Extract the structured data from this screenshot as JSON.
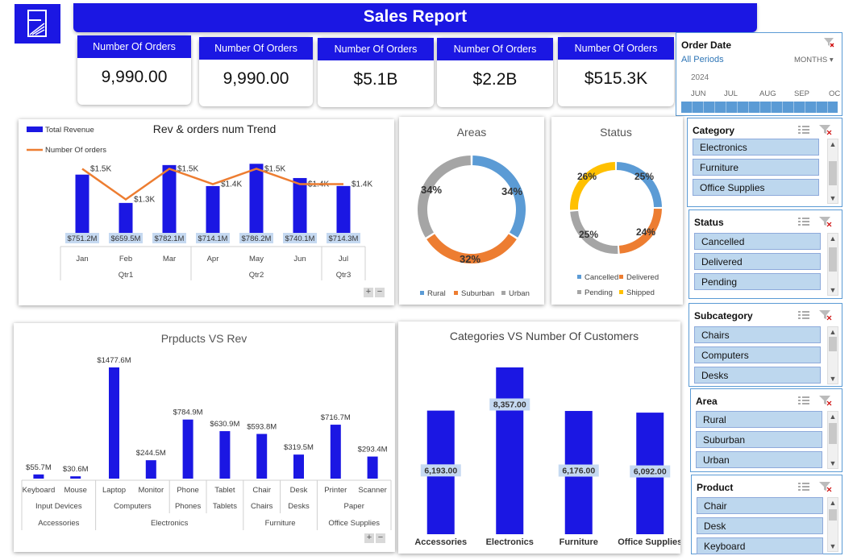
{
  "header": {
    "title": "Sales Report"
  },
  "kpis": [
    {
      "label": "Number Of Orders",
      "value": "9,990.00"
    },
    {
      "label": "Number Of Orders",
      "value": "9,990.00"
    },
    {
      "label": "Number Of Orders",
      "value": "$5.1B"
    },
    {
      "label": "Number Of Orders",
      "value": "$2.2B"
    },
    {
      "label": "Number Of Orders",
      "value": "$515.3K"
    }
  ],
  "timeline": {
    "title": "Order Date",
    "period_label": "All Periods",
    "level_label": "MONTHS",
    "year": "2024",
    "months": [
      "JUN",
      "JUL",
      "AUG",
      "SEP",
      "OC"
    ]
  },
  "slicers": [
    {
      "title": "Category",
      "items": [
        "Electronics",
        "Furniture",
        "Office Supplies"
      ]
    },
    {
      "title": "Status",
      "items": [
        "Cancelled",
        "Delivered",
        "Pending"
      ]
    },
    {
      "title": "Subcategory",
      "items": [
        "Chairs",
        "Computers",
        "Desks"
      ]
    },
    {
      "title": "Area",
      "items": [
        "Rural",
        "Suburban",
        "Urban"
      ]
    },
    {
      "title": "Product",
      "items": [
        "Chair",
        "Desk",
        "Keyboard"
      ]
    }
  ],
  "colors": {
    "accent": "#1b17e3",
    "orange": "#ed7d31",
    "gray": "#a5a5a5",
    "blue_light": "#5b9bd5",
    "yellow": "#ffc000",
    "slicer_item": "#bdd7ee"
  },
  "chart_data": [
    {
      "id": "trend",
      "type": "bar",
      "title": "Rev & orders num Trend",
      "categories": [
        "Jan",
        "Feb",
        "Mar",
        "Apr",
        "May",
        "Jun",
        "Jul"
      ],
      "groups": [
        {
          "label": "Qtr1",
          "span": 3
        },
        {
          "label": "Qtr2",
          "span": 3
        },
        {
          "label": "Qtr3",
          "span": 1
        }
      ],
      "series": [
        {
          "name": "Total Revenue",
          "values": [
            751.2,
            659.5,
            782.1,
            714.1,
            786.2,
            740.1,
            714.3
          ],
          "labels": [
            "$751.2M",
            "$659.5M",
            "$782.1M",
            "$714.1M",
            "$786.2M",
            "$740.1M",
            "$714.3M"
          ]
        },
        {
          "name": "Number Of orders",
          "values": [
            1500,
            1300,
            1500,
            1400,
            1500,
            1400,
            1400
          ],
          "labels": [
            "$1.5K",
            "$1.3K",
            "$1.5K",
            "$1.4K",
            "$1.5K",
            "$1.4K",
            "$1.4K"
          ]
        }
      ]
    },
    {
      "id": "areas",
      "type": "pie",
      "title": "Areas",
      "categories": [
        "Rural",
        "Suburban",
        "Urban"
      ],
      "values": [
        34,
        32,
        34
      ],
      "labels": [
        "34%",
        "32%",
        "34%"
      ]
    },
    {
      "id": "status",
      "type": "pie",
      "title": "Status",
      "categories": [
        "Cancelled",
        "Delivered",
        "Pending",
        "Shipped"
      ],
      "values": [
        25,
        24,
        25,
        26
      ],
      "labels": [
        "25%",
        "24%",
        "25%",
        "26%"
      ]
    },
    {
      "id": "products",
      "type": "bar",
      "title": "Prpducts VS Rev",
      "categories": [
        "Keyboard",
        "Mouse",
        "Laptop",
        "Monitor",
        "Phone",
        "Tablet",
        "Chair",
        "Desk",
        "Printer",
        "Scanner"
      ],
      "values": [
        55.7,
        30.6,
        1477.6,
        244.5,
        784.9,
        630.9,
        593.8,
        319.5,
        716.7,
        293.4
      ],
      "labels": [
        "$55.7M",
        "$30.6M",
        "$1477.6M",
        "$244.5M",
        "$784.9M",
        "$630.9M",
        "$593.8M",
        "$319.5M",
        "$716.7M",
        "$293.4M"
      ],
      "subcategories": [
        {
          "label": "Input Devices",
          "span": 2
        },
        {
          "label": "Computers",
          "span": 2
        },
        {
          "label": "Phones",
          "span": 1
        },
        {
          "label": "Tablets",
          "span": 1
        },
        {
          "label": "Chairs",
          "span": 1
        },
        {
          "label": "Desks",
          "span": 1
        },
        {
          "label": "Paper",
          "span": 2
        }
      ],
      "categories_top": [
        {
          "label": "Accessories",
          "span": 2
        },
        {
          "label": "Electronics",
          "span": 4
        },
        {
          "label": "Furniture",
          "span": 2
        },
        {
          "label": "Office Supplies",
          "span": 2
        }
      ]
    },
    {
      "id": "customers",
      "type": "bar",
      "title": "Categories VS Number Of Customers",
      "categories": [
        "Accessories",
        "Electronics",
        "Furniture",
        "Office Supplies"
      ],
      "values": [
        6193,
        8357,
        6176,
        6092
      ],
      "labels": [
        "6,193.00",
        "8,357.00",
        "6,176.00",
        "6,092.00"
      ]
    }
  ]
}
